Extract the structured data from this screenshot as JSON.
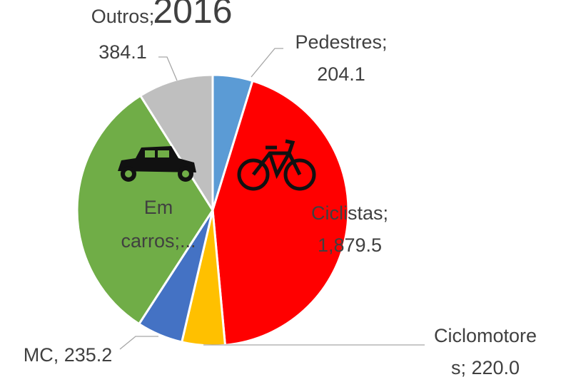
{
  "chart_data": {
    "type": "pie",
    "title": "2016",
    "values": [
      204.1,
      1879.5,
      220.0,
      235.2,
      1370,
      384.1
    ],
    "value_labels": [
      [
        "Pedestres;",
        "204.1"
      ],
      [
        "Ciclistas;",
        "1,879.5"
      ],
      [
        "Ciclomotore",
        "s; 220.0"
      ],
      [
        "MC, 235.2"
      ],
      [
        "Em",
        "carros;..."
      ],
      [
        "Outros;",
        "384.1"
      ]
    ],
    "colors": [
      "#5b9bd5",
      "#ff0000",
      "#ffc000",
      "#4472c4",
      "#70ad47",
      "#bfbfbf"
    ]
  }
}
